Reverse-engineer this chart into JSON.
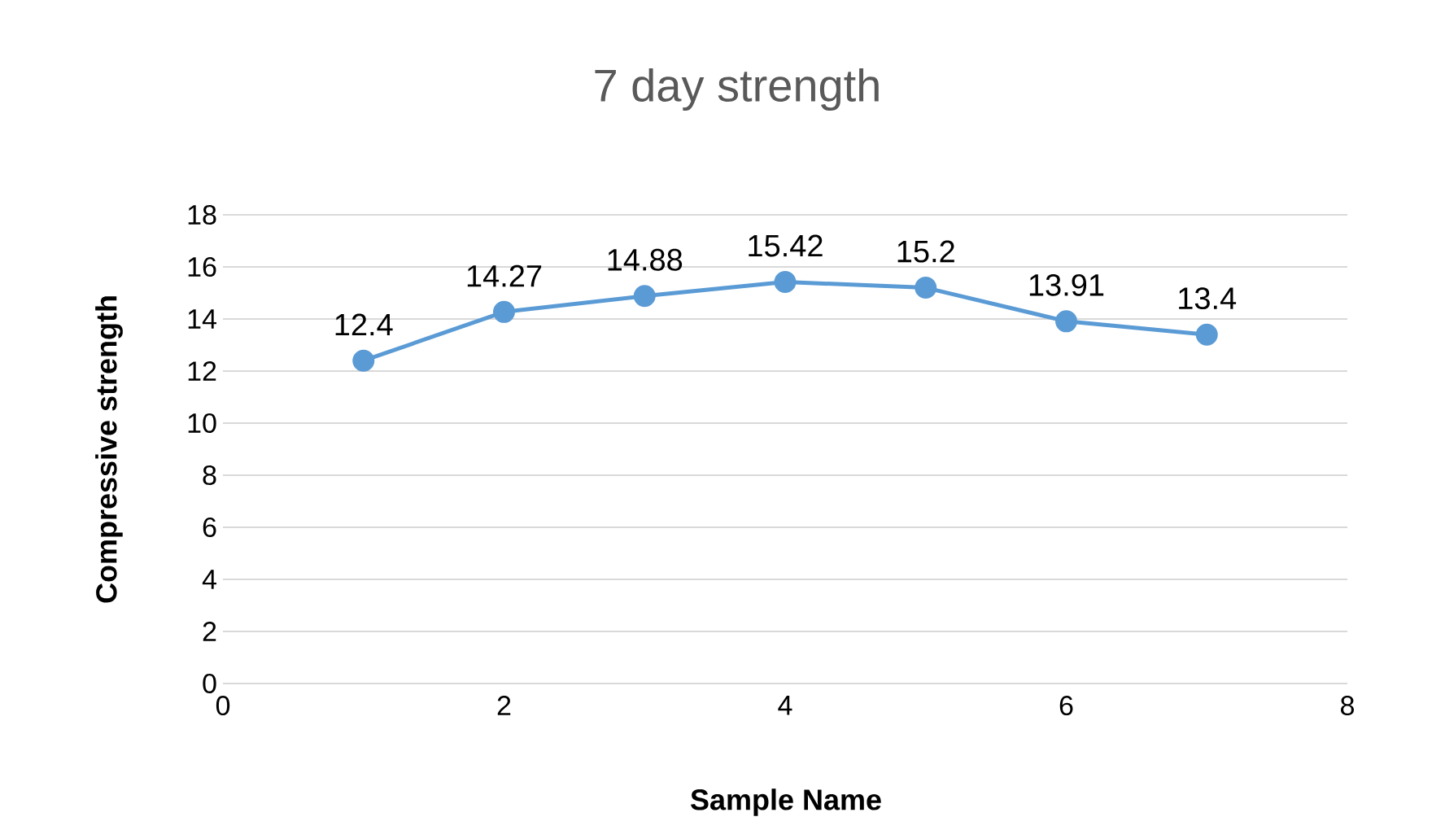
{
  "chart_data": {
    "type": "line",
    "title": "7 day strength",
    "xlabel": "Sample Name",
    "ylabel": "Compressive strength",
    "x": [
      1,
      2,
      3,
      4,
      5,
      6,
      7
    ],
    "series": [
      {
        "color": "#5b9bd5",
        "values": [
          12.4,
          14.27,
          14.88,
          15.42,
          15.2,
          13.91,
          13.4
        ]
      }
    ],
    "xlim": [
      0,
      8
    ],
    "xticks": [
      0,
      2,
      4,
      6,
      8
    ],
    "ylim": [
      0,
      18
    ],
    "yticks": [
      0,
      2,
      4,
      6,
      8,
      10,
      12,
      14,
      16,
      18
    ],
    "grid": "y",
    "marker": "circle",
    "line_style": "solid",
    "data_labels": true,
    "legend": false
  }
}
